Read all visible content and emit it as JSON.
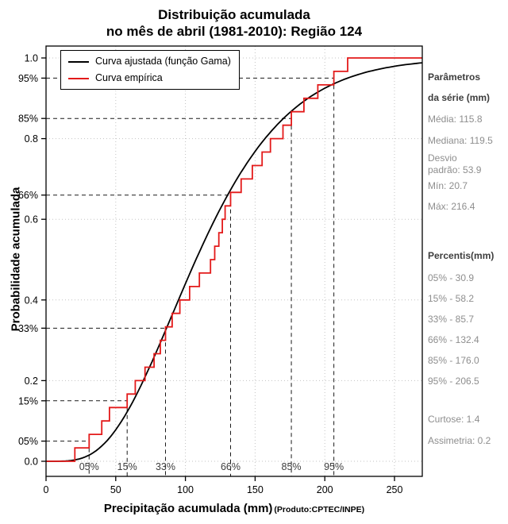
{
  "title": {
    "line1": "Distribuição acumulada",
    "line2": "no mês de abril (1981-2010): Região 124"
  },
  "axes": {
    "x_label": "Precipitação acumulada (mm)",
    "y_label": "Probabilidade acumulada",
    "product_note": "(Produto:CPTEC/INPE)"
  },
  "legend": [
    {
      "label": "Curva ajustada (função Gama)",
      "color": "#000000"
    },
    {
      "label": "Curva empírica",
      "color": "#e31a1a"
    }
  ],
  "side_panel": {
    "params_title_line1": "Parâmetros",
    "params_title_line2": "da série (mm)",
    "mean": "Média: 115.8",
    "median": "Mediana: 119.5",
    "sd_line1": "Desvio",
    "sd_line2": "padrão: 53.9",
    "min": "Mín: 20.7",
    "max": "Máx: 216.4",
    "percentiles_title": "Percentis(mm)",
    "p05": "05% - 30.9",
    "p15": "15% - 58.2",
    "p33": "33% - 85.7",
    "p66": "66% - 132.4",
    "p85": "85% - 176.0",
    "p95": "95% - 206.5",
    "kurtosis": "Curtose: 1.4",
    "skewness": "Assimetria: 0.2"
  },
  "chart_data": {
    "type": "line",
    "title": "Distribuição acumulada no mês de abril (1981-2010): Região 124",
    "xlabel": "Precipitação acumulada (mm)",
    "ylabel": "Probabilidade acumulada",
    "xlim": [
      0,
      270
    ],
    "ylim": [
      0,
      1
    ],
    "grid": true,
    "legend_position": "top-left",
    "x_ticks": [
      0,
      50,
      100,
      150,
      200,
      250
    ],
    "y_ticks": [
      0,
      0.2,
      0.4,
      0.6,
      0.8,
      1
    ],
    "y_percent_labels": [
      {
        "label": "05%",
        "p": 0.05
      },
      {
        "label": "15%",
        "p": 0.15
      },
      {
        "label": "33%",
        "p": 0.33
      },
      {
        "label": "66%",
        "p": 0.66
      },
      {
        "label": "85%",
        "p": 0.85
      },
      {
        "label": "95%",
        "p": 0.95
      }
    ],
    "percentile_guides": [
      {
        "label": "05%",
        "p": 0.05,
        "mm": 30.9
      },
      {
        "label": "15%",
        "p": 0.15,
        "mm": 58.2
      },
      {
        "label": "33%",
        "p": 0.33,
        "mm": 85.7
      },
      {
        "label": "66%",
        "p": 0.66,
        "mm": 132.4
      },
      {
        "label": "85%",
        "p": 0.85,
        "mm": 176.0
      },
      {
        "label": "95%",
        "p": 0.95,
        "mm": 206.5
      }
    ],
    "series": [
      {
        "name": "Curva ajustada (função Gama)",
        "type": "gamma_cdf_fit",
        "color": "#000000",
        "mean": 115.8,
        "sd": 53.9
      },
      {
        "name": "Curva empírica",
        "type": "ecdf_step",
        "color": "#e31a1a",
        "values": [
          20.7,
          30.9,
          40.0,
          45.5,
          58.2,
          64.0,
          71.0,
          77.5,
          82.0,
          85.7,
          90.5,
          96.0,
          103.0,
          110.0,
          118.0,
          121.0,
          124.0,
          126.5,
          128.5,
          132.4,
          140.0,
          148.0,
          155.0,
          161.0,
          170.0,
          176.0,
          185.0,
          195.0,
          206.5,
          216.4
        ]
      }
    ],
    "stats": {
      "mean": 115.8,
      "median": 119.5,
      "sd": 53.9,
      "min": 20.7,
      "max": 216.4,
      "kurtosis": 1.4,
      "skewness": 0.2
    }
  }
}
